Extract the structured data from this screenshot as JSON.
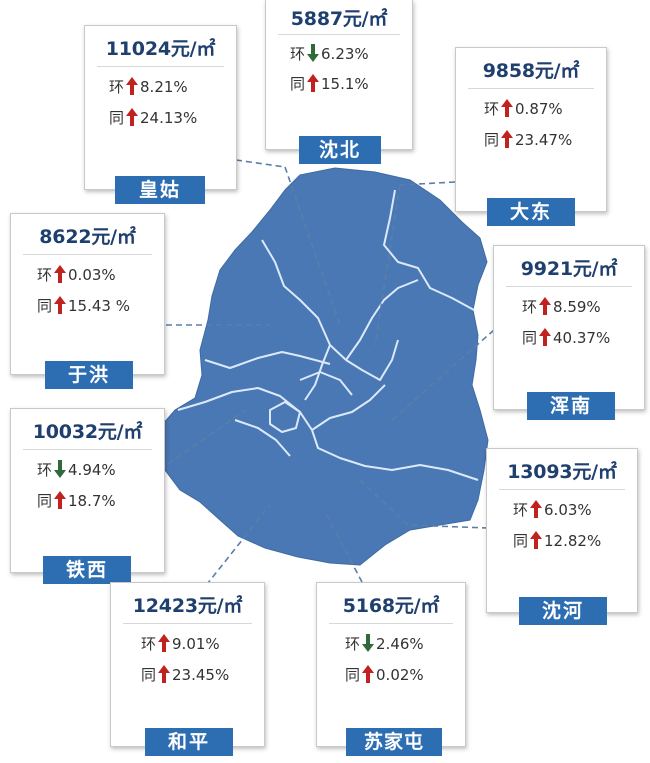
{
  "colors": {
    "map_fill": "#4a78b4",
    "map_border": "#dbe9fb",
    "tag_bg": "#2d6db2",
    "price_text": "#1f3f6e",
    "up_arrow": "#c0231f",
    "down_arrow": "#2f6a3a"
  },
  "districts": [
    {
      "id": "huanggu",
      "name": "皇姑",
      "price": "11024元/㎡",
      "mom_label": "环",
      "mom_dir": "up",
      "mom": "8.21%",
      "yoy_label": "同",
      "yoy_dir": "up",
      "yoy": "24.13%"
    },
    {
      "id": "shenbei",
      "name": "沈北",
      "price": "5887元/㎡",
      "mom_label": "环",
      "mom_dir": "down",
      "mom": "6.23%",
      "yoy_label": "同",
      "yoy_dir": "up",
      "yoy": "15.1%"
    },
    {
      "id": "dadong",
      "name": "大东",
      "price": "9858元/㎡",
      "mom_label": "环",
      "mom_dir": "up",
      "mom": "0.87%",
      "yoy_label": "同",
      "yoy_dir": "up",
      "yoy": "23.47%"
    },
    {
      "id": "yuhong",
      "name": "于洪",
      "price": "8622元/㎡",
      "mom_label": "环",
      "mom_dir": "up",
      "mom": "0.03%",
      "yoy_label": "同",
      "yoy_dir": "up",
      "yoy": "15.43 %"
    },
    {
      "id": "hunnan",
      "name": "浑南",
      "price": "9921元/㎡",
      "mom_label": "环",
      "mom_dir": "up",
      "mom": "8.59%",
      "yoy_label": "同",
      "yoy_dir": "up",
      "yoy": "40.37%"
    },
    {
      "id": "tiexi",
      "name": "铁西",
      "price": "10032元/㎡",
      "mom_label": "环",
      "mom_dir": "down",
      "mom": "4.94%",
      "yoy_label": "同",
      "yoy_dir": "up",
      "yoy": "18.7%"
    },
    {
      "id": "shenhe",
      "name": "沈河",
      "price": "13093元/㎡",
      "mom_label": "环",
      "mom_dir": "up",
      "mom": "6.03%",
      "yoy_label": "同",
      "yoy_dir": "up",
      "yoy": "12.82%"
    },
    {
      "id": "heping",
      "name": "和平",
      "price": "12423元/㎡",
      "mom_label": "环",
      "mom_dir": "up",
      "mom": "9.01%",
      "yoy_label": "同",
      "yoy_dir": "up",
      "yoy": "23.45%"
    },
    {
      "id": "sujiatun",
      "name": "苏家屯",
      "price": "5168元/㎡",
      "mom_label": "环",
      "mom_dir": "down",
      "mom": "2.46%",
      "yoy_label": "同",
      "yoy_dir": "up",
      "yoy": "0.02%"
    }
  ]
}
